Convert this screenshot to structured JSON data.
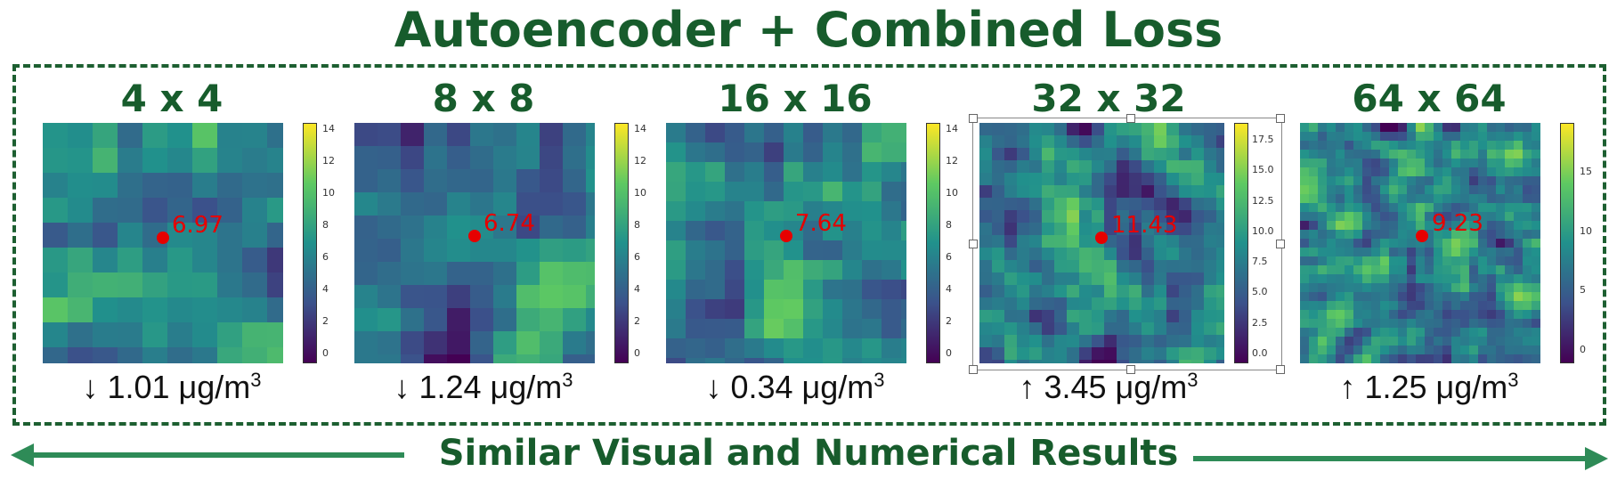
{
  "title": "Autoencoder + Combined Loss",
  "footer": "Similar Visual and Numerical Results",
  "panels": [
    {
      "label": "4 x 4",
      "value": "6.97",
      "delta_arrow": "↓",
      "delta_text": "1.01 μg/m",
      "ticks": [
        "14",
        "12",
        "10",
        "8",
        "6",
        "4",
        "2",
        "0"
      ]
    },
    {
      "label": "8 x 8",
      "value": "6.74",
      "delta_arrow": "↓",
      "delta_text": "1.24 μg/m",
      "ticks": [
        "14",
        "12",
        "10",
        "8",
        "6",
        "4",
        "2",
        "0"
      ]
    },
    {
      "label": "16 x 16",
      "value": "7.64",
      "delta_arrow": "↓",
      "delta_text": "0.34 μg/m",
      "ticks": [
        "14",
        "12",
        "10",
        "8",
        "6",
        "4",
        "2",
        "0"
      ]
    },
    {
      "label": "32 x 32",
      "value": "11.43",
      "delta_arrow": "↑",
      "delta_text": "3.45 μg/m",
      "ticks": [
        "17.5",
        "15.0",
        "12.5",
        "10.0",
        "7.5",
        "5.0",
        "2.5",
        "0.0"
      ]
    },
    {
      "label": "64 x 64",
      "value": "9.23",
      "delta_arrow": "↑",
      "delta_text": "1.25 μg/m",
      "ticks": [
        "15",
        "10",
        "5",
        "0"
      ]
    }
  ],
  "unit_exponent": "3",
  "colors": {
    "title_green": "#175c2c",
    "arrow_green": "#2e8b57",
    "marker_red": "#e60000"
  }
}
